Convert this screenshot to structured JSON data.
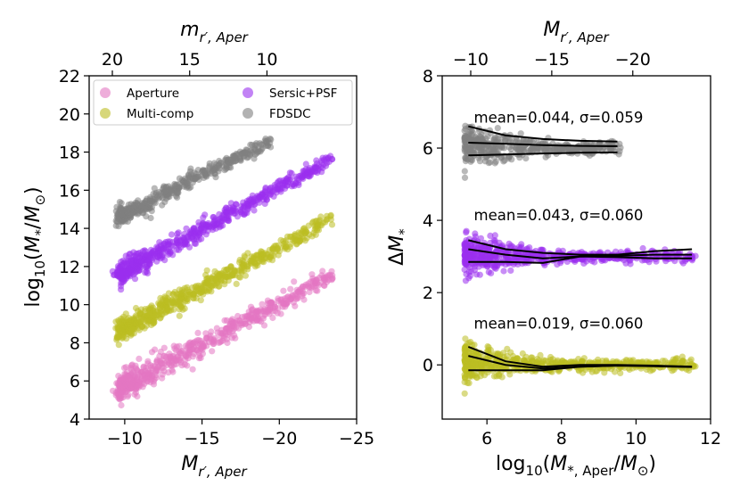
{
  "chart_data": [
    {
      "type": "scatter",
      "title": "",
      "xlabel": "M_{r',Aper}",
      "ylabel": "log10(M*/M⊙)",
      "top_xlabel": "m_{r',Aper}",
      "xlim": [
        -7.7,
        -25
      ],
      "ylim": [
        4,
        22
      ],
      "xticks": [
        -10,
        -15,
        -20,
        -25
      ],
      "xtick_labels": [
        "−10",
        "−15",
        "−20",
        "−25"
      ],
      "yticks": [
        4,
        6,
        8,
        10,
        12,
        14,
        16,
        18,
        20,
        22
      ],
      "ytick_labels": [
        "4",
        "6",
        "8",
        "10",
        "12",
        "14",
        "16",
        "18",
        "20",
        "22"
      ],
      "top_xticks": [
        20,
        15,
        10
      ],
      "top_xtick_labels": [
        "20",
        "15",
        "10"
      ],
      "top_offset_abs_minus_app": -29.2,
      "legend": {
        "placement": "top",
        "entries": [
          "Aperture",
          "Multi-comp",
          "Sersic+PSF",
          "FDSDC"
        ]
      },
      "series": [
        {
          "name": "Aperture",
          "color": "#e377c2",
          "x_range": [
            -9.6,
            -23.3
          ],
          "y_at_x_min": 5.6,
          "y_at_x_max": 11.5,
          "scatter": 0.35,
          "n": 600
        },
        {
          "name": "Multi-comp",
          "color": "#bcbd22",
          "x_range": [
            -9.6,
            -23.3
          ],
          "y_at_x_min": 8.6,
          "y_at_x_max": 14.4,
          "scatter": 0.3,
          "n": 600
        },
        {
          "name": "Sersic+PSF",
          "color": "#9a30ee",
          "x_range": [
            -9.6,
            -23.3
          ],
          "y_at_x_min": 11.6,
          "y_at_x_max": 17.6,
          "scatter": 0.28,
          "n": 600
        },
        {
          "name": "FDSDC",
          "color": "#7f7f7f",
          "x_range": [
            -9.6,
            -19.5
          ],
          "y_at_x_min": 14.6,
          "y_at_x_max": 18.6,
          "scatter": 0.25,
          "n": 420
        }
      ]
    },
    {
      "type": "scatter",
      "title": "",
      "xlabel": "log10(M*,Aper/M⊙)",
      "ylabel": "ΔM*",
      "top_xlabel": "M_{r',Aper}",
      "xlim": [
        4.8,
        12
      ],
      "ylim": [
        -1.5,
        8
      ],
      "xticks": [
        6,
        8,
        10,
        12
      ],
      "xtick_labels": [
        "6",
        "8",
        "10",
        "12"
      ],
      "yticks": [
        0,
        2,
        4,
        6,
        8
      ],
      "ytick_labels": [
        "0",
        "2",
        "4",
        "6",
        "8"
      ],
      "top_xticks": [
        -10,
        -15,
        -20
      ],
      "top_xtick_labels": [
        "−10",
        "−15",
        "−20"
      ],
      "top_axis_mapping": {
        "mag_at_x5": -8.7,
        "mag_per_dex": -2.3
      },
      "series": [
        {
          "name": "FDSDC",
          "color": "#7f7f7f",
          "offset": 6.0,
          "x_range": [
            5.4,
            9.6
          ],
          "n": 420,
          "stat_label": "mean=0.044, σ=0.059",
          "trend_x": [
            5.5,
            6.5,
            7.5,
            8.5,
            9.5
          ],
          "trend_upper": [
            0.6,
            0.35,
            0.25,
            0.2,
            0.18
          ],
          "trend_middle": [
            0.15,
            0.12,
            0.08,
            0.06,
            0.05
          ],
          "trend_lower": [
            -0.2,
            -0.18,
            -0.15,
            -0.13,
            -0.12
          ]
        },
        {
          "name": "Sersic+PSF",
          "color": "#9a30ee",
          "offset": 3.0,
          "x_range": [
            5.4,
            11.6
          ],
          "n": 600,
          "stat_label": "mean=0.043, σ=0.060",
          "trend_x": [
            5.5,
            6.5,
            7.5,
            8.5,
            9.5,
            10.5,
            11.5
          ],
          "trend_upper": [
            0.45,
            0.2,
            0.1,
            0.05,
            0.05,
            0.15,
            0.2
          ],
          "trend_middle": [
            0.2,
            0.05,
            -0.05,
            0.0,
            0.02,
            0.05,
            0.05
          ],
          "trend_lower": [
            -0.15,
            -0.15,
            -0.18,
            0.0,
            -0.02,
            -0.05,
            -0.05
          ]
        },
        {
          "name": "Multi-comp",
          "color": "#bcbd22",
          "offset": 0.0,
          "x_range": [
            5.4,
            11.6
          ],
          "n": 600,
          "stat_label": "mean=0.019, σ=0.060",
          "trend_x": [
            5.5,
            6.5,
            7.5,
            8.5,
            9.5,
            10.5,
            11.5
          ],
          "trend_upper": [
            0.5,
            0.1,
            -0.05,
            0.0,
            0.0,
            -0.02,
            -0.05
          ],
          "trend_middle": [
            0.25,
            0.0,
            -0.1,
            -0.05,
            -0.02,
            -0.03,
            -0.05
          ],
          "trend_lower": [
            -0.15,
            -0.15,
            -0.15,
            -0.05,
            -0.02,
            -0.04,
            -0.06
          ]
        }
      ]
    }
  ]
}
